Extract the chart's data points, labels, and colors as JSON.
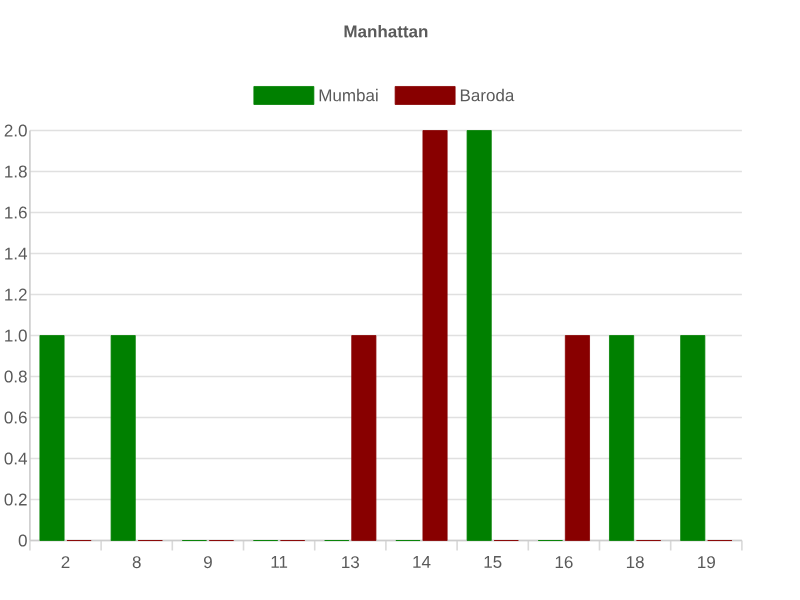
{
  "chart_data": {
    "type": "bar",
    "title": "Manhattan",
    "categories": [
      "2",
      "8",
      "9",
      "11",
      "13",
      "14",
      "15",
      "16",
      "18",
      "19"
    ],
    "series": [
      {
        "name": "Mumbai",
        "color": "#008000",
        "values": [
          1,
          1,
          0,
          0,
          0,
          0,
          2,
          0,
          1,
          1
        ]
      },
      {
        "name": "Baroda",
        "color": "#880000",
        "values": [
          0,
          0,
          0,
          0,
          1,
          2,
          0,
          1,
          0,
          0
        ]
      }
    ],
    "ylim": [
      0,
      2
    ],
    "yticks": [
      0,
      0.2,
      0.4,
      0.6,
      0.8,
      {
        "value": 1,
        "label": "1.0"
      },
      1.2,
      1.4,
      1.6,
      1.8,
      {
        "value": 2,
        "label": "2.0"
      }
    ],
    "grid": "y",
    "legend": "top"
  }
}
